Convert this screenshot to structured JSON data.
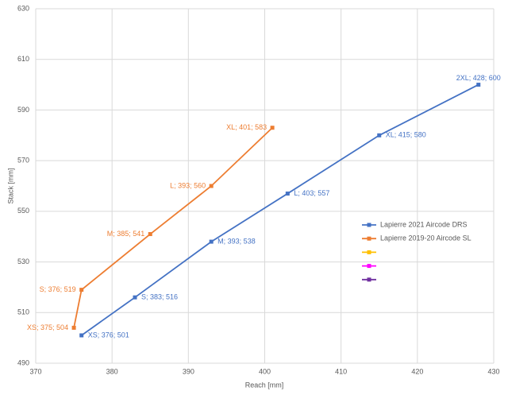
{
  "chart_data": {
    "type": "scatter-line",
    "x_label": "Reach [mm]",
    "y_label": "Stack [mm]",
    "xlim": [
      370,
      430
    ],
    "xticks": [
      370,
      380,
      390,
      400,
      410,
      420,
      430
    ],
    "ylim": [
      490,
      630
    ],
    "yticks": [
      490,
      510,
      530,
      550,
      570,
      590,
      610,
      630
    ],
    "grid": true,
    "legend_position": "right",
    "series": [
      {
        "name": "Lapierre 2021 Aircode DRS",
        "color": "#4472c4",
        "label_side": "right",
        "x": [
          376,
          383,
          393,
          403,
          415,
          428
        ],
        "values": [
          501,
          516,
          538,
          557,
          580,
          600
        ],
        "value_labels": [
          "XS; 376; 501",
          "S; 383; 516",
          "M; 393; 538",
          "L; 403; 557",
          "XL; 415; 580",
          "2XL; 428; 600"
        ]
      },
      {
        "name": "Lapierre 2019-20 Aircode SL",
        "color": "#ed7d31",
        "label_side": "left",
        "x": [
          375,
          376,
          385,
          393,
          401
        ],
        "values": [
          504,
          519,
          541,
          560,
          583
        ],
        "value_labels": [
          "XS; 375; 504",
          "S; 376; 519",
          "M; 385; 541",
          "L; 393; 560",
          "XL; 401; 583"
        ]
      },
      {
        "color": "#ffc000",
        "x": [],
        "values": []
      },
      {
        "color": "#ff00ff",
        "x": [],
        "values": []
      },
      {
        "color": "#7030a0",
        "x": [],
        "values": []
      }
    ]
  }
}
